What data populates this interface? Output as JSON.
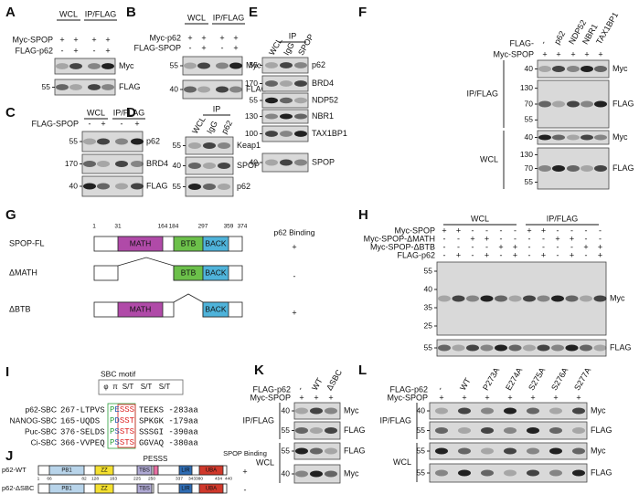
{
  "panels": {
    "A": {
      "label": "A",
      "groups": [
        "WCL",
        "IP/FLAG"
      ],
      "rows": [
        {
          "name": "Myc-SPOP",
          "signs": [
            "+",
            "+",
            "+",
            "+"
          ]
        },
        {
          "name": "FLAG-p62",
          "signs": [
            "-",
            "+",
            "-",
            "+"
          ]
        }
      ],
      "sections": [
        {
          "blots": [
            {
              "name": "Myc"
            },
            {
              "name": "FLAG",
              "markers": [
                55
              ]
            }
          ]
        }
      ]
    },
    "B": {
      "label": "B",
      "groups": [
        "WCL",
        "IP/FLAG"
      ],
      "rows": [
        {
          "name": "Myc-p62",
          "signs": [
            "+",
            "+",
            "+",
            "+"
          ]
        },
        {
          "name": "FLAG-SPOP",
          "signs": [
            "-",
            "+",
            "-",
            "+"
          ]
        }
      ],
      "sections": [
        {
          "blots": [
            {
              "name": "Myc",
              "markers": [
                55
              ]
            },
            {
              "name": "FLAG",
              "markers": [
                40
              ]
            }
          ]
        }
      ]
    },
    "C": {
      "label": "C",
      "groups": [
        "WCL",
        "IP/FLAG"
      ],
      "rows": [
        {
          "name": "FLAG-SPOP",
          "signs": [
            "-",
            "+",
            "-",
            "+"
          ]
        }
      ],
      "sections": [
        {
          "blots": [
            {
              "name": "p62",
              "markers": [
                55
              ]
            },
            {
              "name": "BRD4",
              "markers": [
                170
              ]
            },
            {
              "name": "FLAG",
              "markers": [
                40
              ]
            }
          ]
        }
      ]
    },
    "D": {
      "label": "D",
      "groups": [
        "IP"
      ],
      "lanes": [
        "WCL",
        "IgG",
        "p62"
      ],
      "sections": [
        {
          "blots": [
            {
              "name": "Keap1",
              "markers": [
                55
              ]
            },
            {
              "name": "SPOP",
              "markers": [
                40
              ]
            },
            {
              "name": "p62",
              "markers": [
                55
              ]
            }
          ]
        }
      ]
    },
    "E": {
      "label": "E",
      "groups": [
        "IP"
      ],
      "lanes": [
        "WCL",
        "IgG",
        "SPOP"
      ],
      "sections": [
        {
          "blots": [
            {
              "name": "p62",
              "markers": [
                55
              ]
            },
            {
              "name": "BRD4",
              "markers": [
                170
              ]
            },
            {
              "name": "NDP52",
              "markers": [
                55
              ]
            },
            {
              "name": "NBR1",
              "markers": [
                130
              ]
            },
            {
              "name": "TAX1BP1",
              "markers": [
                100
              ]
            },
            {
              "name": "SPOP",
              "markers": [
                40
              ]
            }
          ]
        }
      ]
    },
    "F": {
      "label": "F",
      "rows": [
        {
          "name": "FLAG-",
          "signs": [
            "-",
            "p62",
            "NDP52",
            "NBR1",
            "TAX1BP1"
          ]
        },
        {
          "name": "Myc-SPOP",
          "signs": [
            "+",
            "+",
            "+",
            "+",
            "+"
          ]
        }
      ],
      "sections": [
        {
          "name": "IP/FLAG",
          "blots": [
            {
              "name": "Myc",
              "markers": [
                40
              ]
            },
            {
              "name": "FLAG",
              "markers": [
                130,
                70,
                55
              ]
            }
          ]
        },
        {
          "name": "WCL",
          "blots": [
            {
              "name": "Myc",
              "markers": [
                40
              ]
            },
            {
              "name": "FLAG",
              "markers": [
                130,
                70,
                55
              ]
            }
          ]
        }
      ]
    },
    "G": {
      "label": "G",
      "positions": [
        1,
        31,
        164,
        184,
        297,
        359,
        374
      ],
      "binding_header": "p62 Binding",
      "domains": [
        "MATH",
        "BTB",
        "BACK"
      ],
      "constructs": [
        {
          "name": "SPOP-FL",
          "binding": "+"
        },
        {
          "name": "ΔMATH",
          "binding": "-"
        },
        {
          "name": "ΔBTB",
          "binding": "+"
        }
      ]
    },
    "H": {
      "label": "H",
      "groups": [
        "WCL",
        "IP/FLAG"
      ],
      "rows": [
        {
          "name": "Myc-SPOP",
          "signs": [
            "+",
            "+",
            "-",
            "-",
            "-",
            "-",
            "+",
            "+",
            "-",
            "-",
            "-",
            "-"
          ]
        },
        {
          "name": "Myc-SPOP-ΔMATH",
          "signs": [
            "-",
            "-",
            "+",
            "+",
            "-",
            "-",
            "-",
            "-",
            "+",
            "+",
            "-",
            "-"
          ]
        },
        {
          "name": "Myc-SPOP-ΔBTB",
          "signs": [
            "-",
            "-",
            "-",
            "-",
            "+",
            "+",
            "-",
            "-",
            "-",
            "-",
            "+",
            "+"
          ]
        },
        {
          "name": "FLAG-p62",
          "signs": [
            "-",
            "+",
            "-",
            "+",
            "-",
            "+",
            "-",
            "+",
            "-",
            "+",
            "-",
            "+"
          ]
        }
      ],
      "sections": [
        {
          "blots": [
            {
              "name": "Myc",
              "markers": [
                55,
                40,
                35,
                25
              ]
            },
            {
              "name": "FLAG",
              "markers": [
                55
              ]
            }
          ]
        }
      ]
    },
    "I": {
      "label": "I",
      "motif_title": "SBC motif",
      "motif_symbols": [
        "φ",
        "π",
        "S/T",
        "S/T",
        "S/T"
      ],
      "rows": [
        {
          "name": "p62-SBC",
          "start": "267-LTPVS",
          "motif": "PESSS",
          "end": "TEEKS -283aa"
        },
        {
          "name": "NANOG-SBC",
          "start": "165-UQDS",
          "motif": "PDSST",
          "end": "SPKGK -179aa"
        },
        {
          "name": "Puc-SBC",
          "start": "376-SELDS",
          "motif": "PSSTS",
          "end": "SSSGI -390aa"
        },
        {
          "name": "Ci-SBC",
          "start": "366-VVPEQ",
          "motif": "PSSTS",
          "end": "GGVAQ -380aa"
        }
      ]
    },
    "J": {
      "label": "J",
      "motif": "PESSS",
      "binding_header": "SPOP Binding",
      "domains": [
        "PB1",
        "ZZ",
        "TBS",
        "LIR",
        "UBA"
      ],
      "positions": [
        1,
        66,
        82,
        128,
        163,
        225,
        250,
        337,
        343,
        380,
        434,
        440
      ],
      "constructs": [
        {
          "name": "p62-WT",
          "binding": "+"
        },
        {
          "name": "p62-ΔSBC",
          "binding": "-"
        }
      ]
    },
    "K": {
      "label": "K",
      "rows": [
        {
          "name": "FLAG-p62",
          "signs": [
            "-",
            "WT",
            "ΔSBC"
          ]
        },
        {
          "name": "Myc-SPOP",
          "signs": [
            "+",
            "+",
            "+"
          ]
        }
      ],
      "sections": [
        {
          "name": "IP/FLAG",
          "blots": [
            {
              "name": "Myc",
              "markers": [
                40
              ]
            },
            {
              "name": "FLAG",
              "markers": [
                55
              ]
            }
          ]
        },
        {
          "name": "WCL",
          "blots": [
            {
              "name": "FLAG",
              "markers": [
                55
              ]
            },
            {
              "name": "Myc",
              "markers": [
                40
              ]
            }
          ]
        }
      ]
    },
    "L": {
      "label": "L",
      "rows": [
        {
          "name": "FLAG-p62",
          "signs": [
            "-",
            "WT",
            "P273A",
            "E274A",
            "S275A",
            "S276A",
            "S277A"
          ]
        },
        {
          "name": "Myc-SPOP",
          "signs": [
            "+",
            "+",
            "+",
            "+",
            "+",
            "+",
            "+"
          ]
        }
      ],
      "sections": [
        {
          "name": "IP/FLAG",
          "blots": [
            {
              "name": "Myc",
              "markers": [
                40
              ]
            },
            {
              "name": "FLAG",
              "markers": [
                55
              ]
            }
          ]
        },
        {
          "name": "WCL",
          "blots": [
            {
              "name": "Myc",
              "markers": [
                55
              ]
            },
            {
              "name": "FLAG",
              "markers": [
                55
              ]
            }
          ]
        }
      ]
    }
  }
}
